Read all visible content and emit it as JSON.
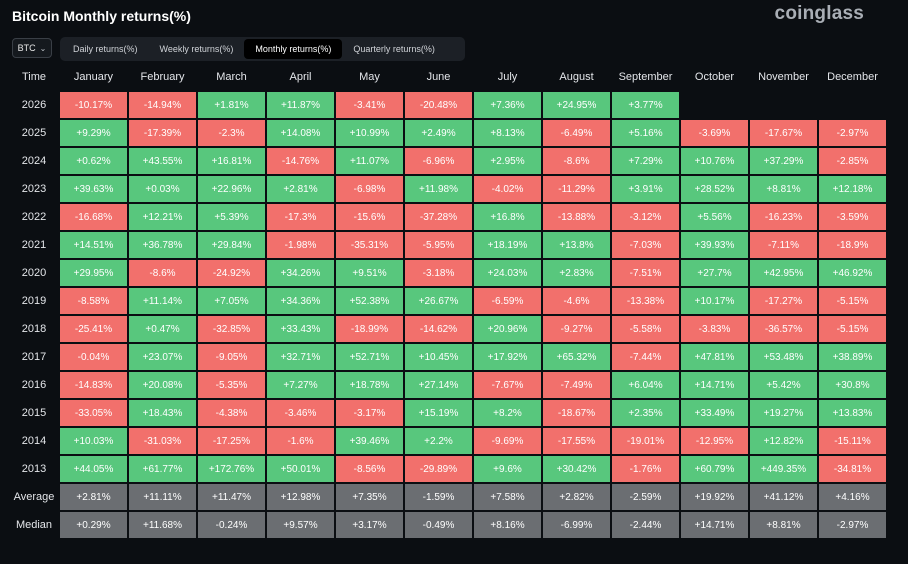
{
  "header": {
    "title": "Bitcoin Monthly returns(%)",
    "brand": "coinglass"
  },
  "asset_select": {
    "value": "BTC"
  },
  "tabs": [
    {
      "label": "Daily returns(%)",
      "active": false
    },
    {
      "label": "Weekly returns(%)",
      "active": false
    },
    {
      "label": "Monthly returns(%)",
      "active": true
    },
    {
      "label": "Quarterly returns(%)",
      "active": false
    }
  ],
  "table": {
    "corner": "Time",
    "columns": [
      "January",
      "February",
      "March",
      "April",
      "May",
      "June",
      "July",
      "August",
      "September",
      "October",
      "November",
      "December"
    ],
    "rows": [
      {
        "label": "2026",
        "values": [
          "-10.17%",
          "-14.94%",
          "+1.81%",
          "+11.87%",
          "-3.41%",
          "-20.48%",
          "+7.36%",
          "+24.95%",
          "+3.77%",
          "",
          "",
          ""
        ]
      },
      {
        "label": "2025",
        "values": [
          "+9.29%",
          "-17.39%",
          "-2.3%",
          "+14.08%",
          "+10.99%",
          "+2.49%",
          "+8.13%",
          "-6.49%",
          "+5.16%",
          "-3.69%",
          "-17.67%",
          "-2.97%"
        ]
      },
      {
        "label": "2024",
        "values": [
          "+0.62%",
          "+43.55%",
          "+16.81%",
          "-14.76%",
          "+11.07%",
          "-6.96%",
          "+2.95%",
          "-8.6%",
          "+7.29%",
          "+10.76%",
          "+37.29%",
          "-2.85%"
        ]
      },
      {
        "label": "2023",
        "values": [
          "+39.63%",
          "+0.03%",
          "+22.96%",
          "+2.81%",
          "-6.98%",
          "+11.98%",
          "-4.02%",
          "-11.29%",
          "+3.91%",
          "+28.52%",
          "+8.81%",
          "+12.18%"
        ]
      },
      {
        "label": "2022",
        "values": [
          "-16.68%",
          "+12.21%",
          "+5.39%",
          "-17.3%",
          "-15.6%",
          "-37.28%",
          "+16.8%",
          "-13.88%",
          "-3.12%",
          "+5.56%",
          "-16.23%",
          "-3.59%"
        ]
      },
      {
        "label": "2021",
        "values": [
          "+14.51%",
          "+36.78%",
          "+29.84%",
          "-1.98%",
          "-35.31%",
          "-5.95%",
          "+18.19%",
          "+13.8%",
          "-7.03%",
          "+39.93%",
          "-7.11%",
          "-18.9%"
        ]
      },
      {
        "label": "2020",
        "values": [
          "+29.95%",
          "-8.6%",
          "-24.92%",
          "+34.26%",
          "+9.51%",
          "-3.18%",
          "+24.03%",
          "+2.83%",
          "-7.51%",
          "+27.7%",
          "+42.95%",
          "+46.92%"
        ]
      },
      {
        "label": "2019",
        "values": [
          "-8.58%",
          "+11.14%",
          "+7.05%",
          "+34.36%",
          "+52.38%",
          "+26.67%",
          "-6.59%",
          "-4.6%",
          "-13.38%",
          "+10.17%",
          "-17.27%",
          "-5.15%"
        ]
      },
      {
        "label": "2018",
        "values": [
          "-25.41%",
          "+0.47%",
          "-32.85%",
          "+33.43%",
          "-18.99%",
          "-14.62%",
          "+20.96%",
          "-9.27%",
          "-5.58%",
          "-3.83%",
          "-36.57%",
          "-5.15%"
        ]
      },
      {
        "label": "2017",
        "values": [
          "-0.04%",
          "+23.07%",
          "-9.05%",
          "+32.71%",
          "+52.71%",
          "+10.45%",
          "+17.92%",
          "+65.32%",
          "-7.44%",
          "+47.81%",
          "+53.48%",
          "+38.89%"
        ]
      },
      {
        "label": "2016",
        "values": [
          "-14.83%",
          "+20.08%",
          "-5.35%",
          "+7.27%",
          "+18.78%",
          "+27.14%",
          "-7.67%",
          "-7.49%",
          "+6.04%",
          "+14.71%",
          "+5.42%",
          "+30.8%"
        ]
      },
      {
        "label": "2015",
        "values": [
          "-33.05%",
          "+18.43%",
          "-4.38%",
          "-3.46%",
          "-3.17%",
          "+15.19%",
          "+8.2%",
          "-18.67%",
          "+2.35%",
          "+33.49%",
          "+19.27%",
          "+13.83%"
        ]
      },
      {
        "label": "2014",
        "values": [
          "+10.03%",
          "-31.03%",
          "-17.25%",
          "-1.6%",
          "+39.46%",
          "+2.2%",
          "-9.69%",
          "-17.55%",
          "-19.01%",
          "-12.95%",
          "+12.82%",
          "-15.11%"
        ]
      },
      {
        "label": "2013",
        "values": [
          "+44.05%",
          "+61.77%",
          "+172.76%",
          "+50.01%",
          "-8.56%",
          "-29.89%",
          "+9.6%",
          "+30.42%",
          "-1.76%",
          "+60.79%",
          "+449.35%",
          "-34.81%"
        ]
      }
    ],
    "stats": [
      {
        "label": "Average",
        "values": [
          "+2.81%",
          "+11.11%",
          "+11.47%",
          "+12.98%",
          "+7.35%",
          "-1.59%",
          "+7.58%",
          "+2.82%",
          "-2.59%",
          "+19.92%",
          "+41.12%",
          "+4.16%"
        ]
      },
      {
        "label": "Median",
        "values": [
          "+0.29%",
          "+11.68%",
          "-0.24%",
          "+9.57%",
          "+3.17%",
          "-0.49%",
          "+8.16%",
          "-6.99%",
          "-2.44%",
          "+14.71%",
          "+8.81%",
          "-2.97%"
        ]
      }
    ]
  },
  "colors": {
    "positive": "#58c77d",
    "negative": "#f2706c",
    "stat": "#6b6e72",
    "background": "#0b0e12"
  }
}
